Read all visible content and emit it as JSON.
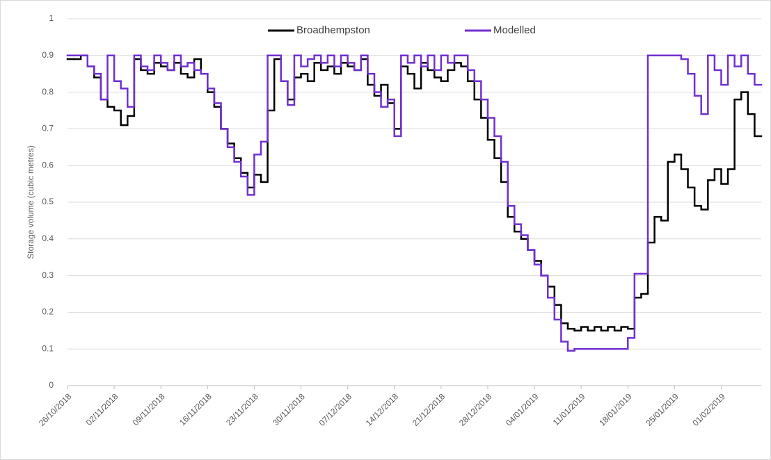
{
  "chart_data": {
    "type": "step",
    "y_label": "Storage volume (cubic metres)",
    "categories": [
      "26/10/2018",
      null,
      null,
      null,
      null,
      null,
      null,
      "02/11/2018",
      null,
      null,
      null,
      null,
      null,
      null,
      "09/11/2018",
      null,
      null,
      null,
      null,
      null,
      null,
      "16/11/2018",
      null,
      null,
      null,
      null,
      null,
      null,
      "23/11/2018",
      null,
      null,
      null,
      null,
      null,
      null,
      "30/11/2018",
      null,
      null,
      null,
      null,
      null,
      null,
      "07/12/2018",
      null,
      null,
      null,
      null,
      null,
      null,
      "14/12/2018",
      null,
      null,
      null,
      null,
      null,
      null,
      "21/12/2018",
      null,
      null,
      null,
      null,
      null,
      null,
      "28/12/2018",
      null,
      null,
      null,
      null,
      null,
      null,
      "04/01/2019",
      null,
      null,
      null,
      null,
      null,
      null,
      "11/01/2019",
      null,
      null,
      null,
      null,
      null,
      null,
      "18/01/2019",
      null,
      null,
      null,
      null,
      null,
      null,
      "25/01/2019",
      null,
      null,
      null,
      null,
      null,
      null,
      "01/02/2019",
      null,
      null,
      null,
      null,
      null
    ],
    "series": [
      {
        "name": "Broadhempston",
        "color": "#000000",
        "values": [
          0.89,
          0.89,
          0.9,
          0.87,
          0.84,
          0.78,
          0.76,
          0.75,
          0.71,
          0.735,
          0.89,
          0.86,
          0.85,
          0.88,
          0.87,
          0.86,
          0.88,
          0.85,
          0.84,
          0.89,
          0.85,
          0.8,
          0.76,
          0.7,
          0.66,
          0.62,
          0.58,
          0.54,
          0.575,
          0.555,
          0.75,
          0.89,
          0.83,
          0.78,
          0.84,
          0.85,
          0.83,
          0.88,
          0.86,
          0.87,
          0.85,
          0.88,
          0.87,
          0.86,
          0.89,
          0.82,
          0.79,
          0.82,
          0.77,
          0.7,
          0.87,
          0.85,
          0.81,
          0.88,
          0.86,
          0.84,
          0.83,
          0.86,
          0.88,
          0.87,
          0.83,
          0.78,
          0.73,
          0.67,
          0.62,
          0.555,
          0.46,
          0.42,
          0.4,
          0.37,
          0.34,
          0.3,
          0.27,
          0.22,
          0.17,
          0.155,
          0.15,
          0.16,
          0.15,
          0.16,
          0.15,
          0.16,
          0.15,
          0.16,
          0.155,
          0.24,
          0.25,
          0.39,
          0.46,
          0.45,
          0.61,
          0.63,
          0.59,
          0.54,
          0.49,
          0.48,
          0.56,
          0.59,
          0.55,
          0.59,
          0.78,
          0.8,
          0.74,
          0.68
        ]
      },
      {
        "name": "Modelled",
        "color": "#7030d0",
        "values": [
          0.9,
          0.9,
          0.9,
          0.87,
          0.85,
          0.78,
          0.9,
          0.83,
          0.81,
          0.76,
          0.9,
          0.87,
          0.86,
          0.9,
          0.88,
          0.86,
          0.9,
          0.87,
          0.88,
          0.86,
          0.85,
          0.81,
          0.77,
          0.7,
          0.65,
          0.61,
          0.57,
          0.52,
          0.63,
          0.665,
          0.9,
          0.9,
          0.83,
          0.765,
          0.9,
          0.87,
          0.89,
          0.9,
          0.88,
          0.9,
          0.87,
          0.9,
          0.88,
          0.86,
          0.9,
          0.85,
          0.8,
          0.76,
          0.78,
          0.68,
          0.9,
          0.88,
          0.9,
          0.87,
          0.9,
          0.86,
          0.9,
          0.88,
          0.9,
          0.9,
          0.86,
          0.83,
          0.78,
          0.73,
          0.68,
          0.61,
          0.49,
          0.44,
          0.41,
          0.37,
          0.33,
          0.3,
          0.24,
          0.18,
          0.12,
          0.095,
          0.1,
          0.1,
          0.1,
          0.1,
          0.1,
          0.1,
          0.1,
          0.1,
          0.13,
          0.305,
          0.305,
          0.9,
          0.9,
          0.9,
          0.9,
          0.9,
          0.89,
          0.85,
          0.79,
          0.74,
          0.9,
          0.86,
          0.82,
          0.9,
          0.87,
          0.9,
          0.85,
          0.82
        ]
      }
    ],
    "ylim": [
      0,
      1
    ],
    "yticks": [
      0,
      0.1,
      0.2,
      0.3,
      0.4,
      0.5,
      0.6,
      0.7,
      0.8,
      0.9,
      1
    ],
    "grid": true,
    "legend": "top"
  }
}
